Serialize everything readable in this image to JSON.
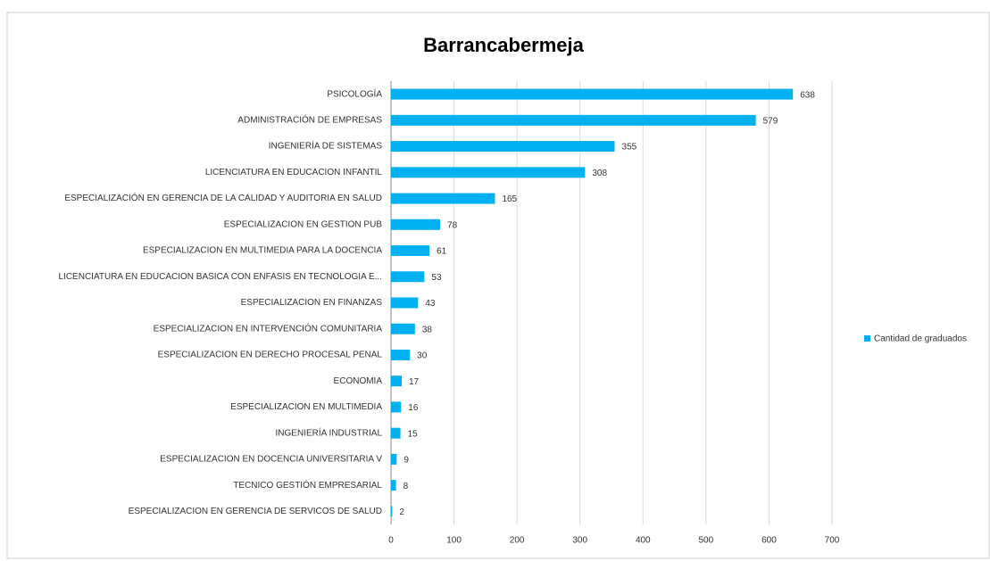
{
  "chart_data": {
    "type": "bar",
    "orientation": "horizontal",
    "title": "Barrancabermeja",
    "categories": [
      "PSICOLOGÍA",
      "ADMINISTRACIÓN DE EMPRESAS",
      "INGENIERÍA DE SISTEMAS",
      "LICENCIATURA EN EDUCACION INFANTIL",
      "ESPECIALIZACIÓN EN GERENCIA DE LA CALIDAD Y AUDITORIA EN SALUD",
      "ESPECIALIZACION EN GESTION PUB",
      "ESPECIALIZACION EN MULTIMEDIA PARA LA DOCENCIA",
      "LICENCIATURA EN EDUCACION BASICA CON ENFASIS EN TECNOLOGIA E...",
      "ESPECIALIZACION EN FINANZAS",
      "ESPECIALIZACION EN INTERVENCIÓN COMUNITARIA",
      "ESPECIALIZACION EN DERECHO PROCESAL PENAL",
      "ECONOMIA",
      "ESPECIALIZACION EN MULTIMEDIA",
      "INGENIERÍA INDUSTRIAL",
      "ESPECIALIZACION EN DOCENCIA UNIVERSITARIA V",
      "TECNICO GESTIÓN EMPRESARIAL",
      "ESPECIALIZACION EN GERENCIA DE SERVICOS DE SALUD"
    ],
    "series": [
      {
        "name": "Cantidad de graduados",
        "color": "#00b0f0",
        "values": [
          638,
          579,
          355,
          308,
          165,
          78,
          61,
          53,
          43,
          38,
          30,
          17,
          16,
          15,
          9,
          8,
          2
        ]
      }
    ],
    "xlim": [
      0,
      700
    ],
    "xticks": [
      0,
      100,
      200,
      300,
      400,
      500,
      600,
      700
    ],
    "grid": true,
    "legend": "right"
  }
}
